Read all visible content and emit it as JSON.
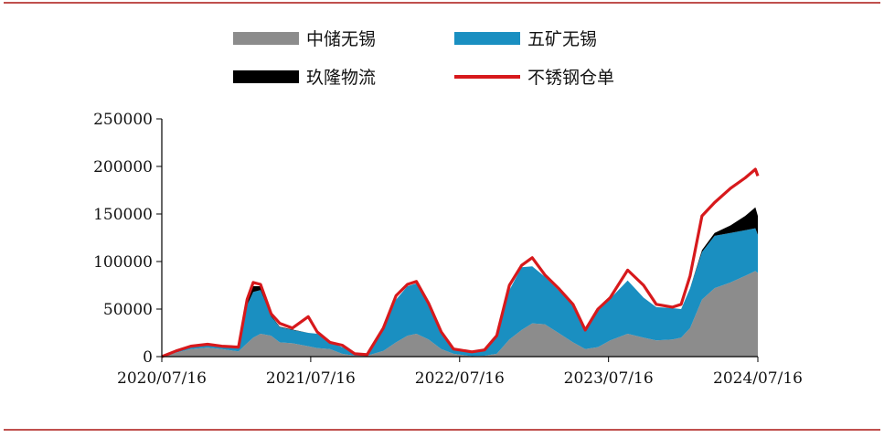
{
  "chart_data": {
    "type": "area",
    "title": "",
    "xlabel": "",
    "ylabel": "",
    "ylim": [
      0,
      250000
    ],
    "yticks": [
      "0",
      "50000",
      "100000",
      "150000",
      "200000",
      "250000"
    ],
    "xticks": [
      "2020/07/16",
      "2021/07/16",
      "2022/07/16",
      "2023/07/16",
      "2024/07/16"
    ],
    "xlim": [
      "2020/07/16",
      "2024/07/16"
    ],
    "legend_position": "top",
    "colors": {
      "zhongchu": "#8c8c8c",
      "wukuang": "#1a8fc1",
      "jiulong": "#000000",
      "cangdan": "#d7191c"
    },
    "stack_series": [
      {
        "key": "zhongchu",
        "name": "中储无锡",
        "points": [
          [
            "2020/07/16",
            0
          ],
          [
            "2020/08/20",
            4000
          ],
          [
            "2020/09/25",
            8000
          ],
          [
            "2020/11/05",
            9500
          ],
          [
            "2020/12/10",
            8000
          ],
          [
            "2021/01/20",
            5500
          ],
          [
            "2021/02/10",
            14000
          ],
          [
            "2021/02/25",
            20000
          ],
          [
            "2021/03/15",
            24000
          ],
          [
            "2021/04/10",
            22000
          ],
          [
            "2021/05/01",
            15000
          ],
          [
            "2021/06/01",
            14000
          ],
          [
            "2021/07/10",
            11000
          ],
          [
            "2021/08/01",
            9000
          ],
          [
            "2021/09/01",
            8000
          ],
          [
            "2021/10/01",
            3000
          ],
          [
            "2021/11/01",
            1000
          ],
          [
            "2021/12/01",
            1000
          ],
          [
            "2022/01/10",
            6000
          ],
          [
            "2022/02/10",
            15000
          ],
          [
            "2022/03/10",
            22000
          ],
          [
            "2022/04/01",
            24000
          ],
          [
            "2022/05/01",
            18000
          ],
          [
            "2022/06/01",
            8000
          ],
          [
            "2022/07/01",
            3000
          ],
          [
            "2022/08/15",
            500
          ],
          [
            "2022/09/15",
            1000
          ],
          [
            "2022/10/15",
            3000
          ],
          [
            "2022/11/15",
            18000
          ],
          [
            "2022/12/15",
            28000
          ],
          [
            "2023/01/10",
            35000
          ],
          [
            "2023/02/10",
            34000
          ],
          [
            "2023/03/15",
            25000
          ],
          [
            "2023/04/20",
            15000
          ],
          [
            "2023/05/20",
            8000
          ],
          [
            "2023/06/20",
            10000
          ],
          [
            "2023/07/20",
            17000
          ],
          [
            "2023/09/01",
            24000
          ],
          [
            "2023/10/10",
            20000
          ],
          [
            "2023/11/10",
            17000
          ],
          [
            "2023/12/20",
            18000
          ],
          [
            "2024/01/10",
            20000
          ],
          [
            "2024/02/01",
            30000
          ],
          [
            "2024/03/01",
            60000
          ],
          [
            "2024/04/01",
            72000
          ],
          [
            "2024/05/10",
            78000
          ],
          [
            "2024/06/15",
            85000
          ],
          [
            "2024/07/10",
            90000
          ],
          [
            "2024/07/16",
            88000
          ]
        ]
      },
      {
        "key": "wukuang",
        "name": "五矿无锡",
        "points": [
          [
            "2020/07/16",
            0
          ],
          [
            "2020/08/20",
            1000
          ],
          [
            "2020/09/25",
            2000
          ],
          [
            "2020/11/05",
            3000
          ],
          [
            "2020/12/10",
            3000
          ],
          [
            "2021/01/20",
            5000
          ],
          [
            "2021/02/10",
            40000
          ],
          [
            "2021/02/25",
            48000
          ],
          [
            "2021/03/15",
            46000
          ],
          [
            "2021/04/10",
            20000
          ],
          [
            "2021/05/01",
            16000
          ],
          [
            "2021/06/01",
            14000
          ],
          [
            "2021/07/10",
            14000
          ],
          [
            "2021/08/01",
            15000
          ],
          [
            "2021/09/01",
            7000
          ],
          [
            "2021/10/01",
            7000
          ],
          [
            "2021/11/01",
            2000
          ],
          [
            "2021/12/01",
            1000
          ],
          [
            "2022/01/10",
            22000
          ],
          [
            "2022/02/10",
            45000
          ],
          [
            "2022/03/10",
            52000
          ],
          [
            "2022/04/01",
            53000
          ],
          [
            "2022/05/01",
            37000
          ],
          [
            "2022/06/01",
            17000
          ],
          [
            "2022/07/01",
            5000
          ],
          [
            "2022/08/15",
            4000
          ],
          [
            "2022/09/15",
            5000
          ],
          [
            "2022/10/15",
            18000
          ],
          [
            "2022/11/15",
            52000
          ],
          [
            "2022/12/15",
            66000
          ],
          [
            "2023/01/10",
            60000
          ],
          [
            "2023/02/10",
            50000
          ],
          [
            "2023/03/15",
            45000
          ],
          [
            "2023/04/20",
            40000
          ],
          [
            "2023/05/20",
            20000
          ],
          [
            "2023/06/20",
            38000
          ],
          [
            "2023/07/20",
            44000
          ],
          [
            "2023/09/01",
            56000
          ],
          [
            "2023/10/10",
            42000
          ],
          [
            "2023/11/10",
            35000
          ],
          [
            "2023/12/20",
            33000
          ],
          [
            "2024/01/10",
            30000
          ],
          [
            "2024/02/01",
            42000
          ],
          [
            "2024/03/01",
            50000
          ],
          [
            "2024/04/01",
            55000
          ],
          [
            "2024/05/10",
            52000
          ],
          [
            "2024/06/15",
            48000
          ],
          [
            "2024/07/10",
            45000
          ],
          [
            "2024/07/16",
            40000
          ]
        ]
      },
      {
        "key": "jiulong",
        "name": "玖隆物流",
        "points": [
          [
            "2020/07/16",
            0
          ],
          [
            "2020/08/20",
            0
          ],
          [
            "2020/09/25",
            0
          ],
          [
            "2020/11/05",
            0
          ],
          [
            "2020/12/10",
            0
          ],
          [
            "2021/01/20",
            0
          ],
          [
            "2021/02/10",
            4000
          ],
          [
            "2021/02/25",
            6000
          ],
          [
            "2021/03/15",
            4000
          ],
          [
            "2021/04/10",
            1000
          ],
          [
            "2021/05/01",
            500
          ],
          [
            "2021/06/01",
            500
          ],
          [
            "2021/07/10",
            0
          ],
          [
            "2021/08/01",
            0
          ],
          [
            "2021/09/01",
            0
          ],
          [
            "2021/10/01",
            0
          ],
          [
            "2021/11/01",
            0
          ],
          [
            "2021/12/01",
            0
          ],
          [
            "2022/01/10",
            0
          ],
          [
            "2022/02/10",
            0
          ],
          [
            "2022/03/10",
            0
          ],
          [
            "2022/04/01",
            0
          ],
          [
            "2022/05/01",
            0
          ],
          [
            "2022/06/01",
            0
          ],
          [
            "2022/07/01",
            0
          ],
          [
            "2022/08/15",
            0
          ],
          [
            "2022/09/15",
            0
          ],
          [
            "2022/10/15",
            0
          ],
          [
            "2022/11/15",
            0
          ],
          [
            "2022/12/15",
            0
          ],
          [
            "2023/01/10",
            0
          ],
          [
            "2023/02/10",
            0
          ],
          [
            "2023/03/15",
            0
          ],
          [
            "2023/04/20",
            0
          ],
          [
            "2023/05/20",
            0
          ],
          [
            "2023/06/20",
            0
          ],
          [
            "2023/07/20",
            0
          ],
          [
            "2023/09/01",
            0
          ],
          [
            "2023/10/10",
            0
          ],
          [
            "2023/11/10",
            0
          ],
          [
            "2023/12/20",
            0
          ],
          [
            "2024/01/10",
            0
          ],
          [
            "2024/02/01",
            0
          ],
          [
            "2024/03/01",
            2000
          ],
          [
            "2024/04/01",
            3000
          ],
          [
            "2024/05/10",
            8000
          ],
          [
            "2024/06/15",
            15000
          ],
          [
            "2024/07/10",
            22000
          ],
          [
            "2024/07/16",
            20000
          ]
        ]
      }
    ],
    "line_series": {
      "key": "cangdan",
      "name": "不锈钢仓单",
      "points": [
        [
          "2020/07/16",
          0
        ],
        [
          "2020/08/20",
          6000
        ],
        [
          "2020/09/25",
          11000
        ],
        [
          "2020/11/05",
          13000
        ],
        [
          "2020/12/10",
          11000
        ],
        [
          "2021/01/20",
          10000
        ],
        [
          "2021/02/10",
          60000
        ],
        [
          "2021/02/25",
          78000
        ],
        [
          "2021/03/15",
          76000
        ],
        [
          "2021/04/10",
          45000
        ],
        [
          "2021/05/01",
          35000
        ],
        [
          "2021/06/01",
          30000
        ],
        [
          "2021/07/10",
          42000
        ],
        [
          "2021/08/01",
          26000
        ],
        [
          "2021/09/01",
          15000
        ],
        [
          "2021/10/01",
          12000
        ],
        [
          "2021/11/01",
          3000
        ],
        [
          "2021/12/01",
          2000
        ],
        [
          "2022/01/10",
          30000
        ],
        [
          "2022/02/10",
          64000
        ],
        [
          "2022/03/10",
          76000
        ],
        [
          "2022/04/01",
          79000
        ],
        [
          "2022/05/01",
          56000
        ],
        [
          "2022/06/01",
          26000
        ],
        [
          "2022/07/01",
          8000
        ],
        [
          "2022/08/15",
          5000
        ],
        [
          "2022/09/15",
          7000
        ],
        [
          "2022/10/15",
          22000
        ],
        [
          "2022/11/15",
          75000
        ],
        [
          "2022/12/15",
          96000
        ],
        [
          "2023/01/10",
          104000
        ],
        [
          "2023/02/10",
          86000
        ],
        [
          "2023/03/15",
          72000
        ],
        [
          "2023/04/20",
          55000
        ],
        [
          "2023/05/20",
          28000
        ],
        [
          "2023/06/20",
          50000
        ],
        [
          "2023/07/20",
          62000
        ],
        [
          "2023/09/01",
          91000
        ],
        [
          "2023/10/10",
          75000
        ],
        [
          "2023/11/10",
          55000
        ],
        [
          "2023/12/20",
          52000
        ],
        [
          "2024/01/10",
          55000
        ],
        [
          "2024/02/01",
          85000
        ],
        [
          "2024/03/01",
          148000
        ],
        [
          "2024/04/01",
          162000
        ],
        [
          "2024/05/10",
          177000
        ],
        [
          "2024/06/15",
          188000
        ],
        [
          "2024/07/10",
          197000
        ],
        [
          "2024/07/16",
          190000
        ]
      ]
    }
  }
}
